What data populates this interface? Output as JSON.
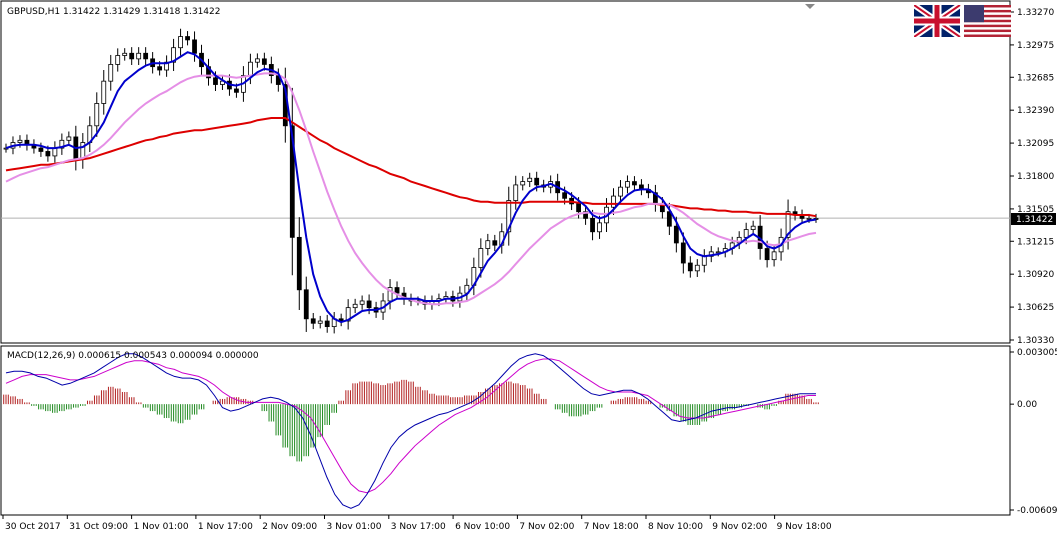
{
  "symbol_header": "GBPUSD,H1  1.31422 1.31429 1.31418 1.31422",
  "macd_header": "MACD(12,26,9) 0.000615 0.000543 0.000094 0.000000",
  "current_price_label": "1.31422",
  "flags": {
    "left": "uk-flag-icon",
    "right": "us-flag-icon"
  },
  "colors": {
    "bull_candle": "#ffffff",
    "bear_candle": "#000000",
    "fast_ma": "#0000cc",
    "mid_ma": "#e58fe6",
    "slow_ma": "#dd0000",
    "hist_pos": "#b22222",
    "hist_neg": "#228b22",
    "macd_line": "#0000aa",
    "signal_line": "#cc00cc"
  },
  "chart_data": [
    {
      "type": "line",
      "title": "GBPUSD,H1",
      "y_ticks": [
        "1.33270",
        "1.32975",
        "1.32685",
        "1.32390",
        "1.32095",
        "1.31800",
        "1.31505",
        "1.31215",
        "1.30920",
        "1.30625",
        "1.30330"
      ],
      "ylim": [
        1.3033,
        1.3327
      ],
      "x_ticks": [
        "30 Oct 2017",
        "31 Oct 09:00",
        "1 Nov 01:00",
        "1 Nov 17:00",
        "2 Nov 09:00",
        "3 Nov 01:00",
        "3 Nov 17:00",
        "6 Nov 10:00",
        "7 Nov 02:00",
        "7 Nov 18:00",
        "8 Nov 10:00",
        "9 Nov 02:00",
        "9 Nov 18:00"
      ],
      "last_price": 1.31422,
      "series": [
        {
          "kind": "close",
          "values": [
            1.3205,
            1.321,
            1.3212,
            1.3208,
            1.3205,
            1.3202,
            1.3198,
            1.3205,
            1.3212,
            1.3215,
            1.3195,
            1.321,
            1.3225,
            1.3245,
            1.3265,
            1.328,
            1.3288,
            1.329,
            1.3285,
            1.329,
            1.3285,
            1.3278,
            1.3275,
            1.3282,
            1.3295,
            1.3305,
            1.3302,
            1.329,
            1.3278,
            1.3268,
            1.3262,
            1.3265,
            1.3258,
            1.3255,
            1.327,
            1.3282,
            1.3285,
            1.328,
            1.327,
            1.3262,
            1.3225,
            1.3125,
            1.3078,
            1.3052,
            1.3048,
            1.305,
            1.3045,
            1.3052,
            1.305,
            1.3062,
            1.3065,
            1.3068,
            1.3062,
            1.3058,
            1.3068,
            1.308,
            1.3075,
            1.307,
            1.3068,
            1.3068,
            1.3065,
            1.3068,
            1.307,
            1.3072,
            1.3068,
            1.3075,
            1.3082,
            1.3098,
            1.3115,
            1.3122,
            1.3118,
            1.313,
            1.3158,
            1.3172,
            1.3175,
            1.3178,
            1.3172,
            1.317,
            1.3175,
            1.3165,
            1.316,
            1.3155,
            1.3148,
            1.3142,
            1.313,
            1.3138,
            1.3152,
            1.3162,
            1.317,
            1.3175,
            1.3172,
            1.3168,
            1.3165,
            1.3155,
            1.3148,
            1.3135,
            1.312,
            1.3102,
            1.3095,
            1.31,
            1.3108,
            1.3112,
            1.3112,
            1.3115,
            1.312,
            1.3125,
            1.3132,
            1.3135,
            1.3115,
            1.3105,
            1.3112,
            1.3125,
            1.3148,
            1.3145,
            1.3142,
            1.3142,
            1.3142
          ]
        },
        {
          "kind": "ma_fast",
          "values": [
            1.3205,
            1.3207,
            1.3208,
            1.3208,
            1.3208,
            1.3207,
            1.3205,
            1.3205,
            1.3206,
            1.3208,
            1.3205,
            1.3206,
            1.321,
            1.3218,
            1.3228,
            1.3242,
            1.3256,
            1.3265,
            1.327,
            1.3275,
            1.3279,
            1.3281,
            1.3281,
            1.3281,
            1.3283,
            1.3287,
            1.3291,
            1.3289,
            1.3284,
            1.3277,
            1.327,
            1.3266,
            1.3262,
            1.3261,
            1.3263,
            1.3268,
            1.3273,
            1.3276,
            1.3275,
            1.3272,
            1.3258,
            1.3215,
            1.3168,
            1.3125,
            1.3092,
            1.3072,
            1.3059,
            1.3052,
            1.3049,
            1.3051,
            1.3055,
            1.3059,
            1.306,
            1.306,
            1.3062,
            1.3067,
            1.307,
            1.307,
            1.307,
            1.307,
            1.3068,
            1.3068,
            1.3068,
            1.307,
            1.307,
            1.3071,
            1.3074,
            1.3082,
            1.3093,
            1.3104,
            1.3111,
            1.3119,
            1.3133,
            1.3147,
            1.3158,
            1.3166,
            1.317,
            1.3171,
            1.3173,
            1.317,
            1.3167,
            1.3163,
            1.3158,
            1.3153,
            1.3145,
            1.3142,
            1.3144,
            1.315,
            1.3157,
            1.3163,
            1.3167,
            1.3168,
            1.3168,
            1.3164,
            1.3159,
            1.315,
            1.3139,
            1.3126,
            1.3115,
            1.311,
            1.3108,
            1.3109,
            1.311,
            1.3112,
            1.3115,
            1.3119,
            1.3124,
            1.3128,
            1.3124,
            1.3117,
            1.3115,
            1.3118,
            1.3128,
            1.3134,
            1.3138,
            1.314,
            1.3141
          ]
        },
        {
          "kind": "ma_mid",
          "values": [
            1.3175,
            1.3178,
            1.3181,
            1.3183,
            1.3185,
            1.3187,
            1.3188,
            1.319,
            1.3192,
            1.3194,
            1.3195,
            1.3196,
            1.3199,
            1.3203,
            1.3208,
            1.3214,
            1.3221,
            1.3228,
            1.3234,
            1.324,
            1.3245,
            1.3249,
            1.3253,
            1.3256,
            1.326,
            1.3264,
            1.3267,
            1.3269,
            1.327,
            1.327,
            1.327,
            1.327,
            1.3269,
            1.3268,
            1.3269,
            1.327,
            1.3271,
            1.3272,
            1.3272,
            1.3271,
            1.3267,
            1.3255,
            1.3239,
            1.3221,
            1.3202,
            1.3184,
            1.3166,
            1.315,
            1.3135,
            1.3122,
            1.3111,
            1.3102,
            1.3094,
            1.3087,
            1.3081,
            1.3077,
            1.3074,
            1.3071,
            1.3069,
            1.3067,
            1.3066,
            1.3065,
            1.3065,
            1.3066,
            1.3066,
            1.3067,
            1.3068,
            1.3071,
            1.3075,
            1.3079,
            1.3083,
            1.3088,
            1.3094,
            1.3101,
            1.3108,
            1.3115,
            1.3121,
            1.3127,
            1.3133,
            1.3137,
            1.3141,
            1.3144,
            1.3146,
            1.3147,
            1.3147,
            1.3146,
            1.3146,
            1.3147,
            1.3148,
            1.315,
            1.3152,
            1.3153,
            1.3155,
            1.3155,
            1.3155,
            1.3154,
            1.3151,
            1.3147,
            1.3142,
            1.3137,
            1.3133,
            1.3129,
            1.3126,
            1.3124,
            1.3122,
            1.3121,
            1.3121,
            1.3122,
            1.3121,
            1.3119,
            1.3118,
            1.3119,
            1.3122,
            1.3124,
            1.3126,
            1.3128,
            1.3129
          ]
        },
        {
          "kind": "ma_slow",
          "values": [
            1.3185,
            1.3186,
            1.3187,
            1.3188,
            1.3189,
            1.319,
            1.319,
            1.3191,
            1.3192,
            1.3193,
            1.3194,
            1.3195,
            1.3196,
            1.3198,
            1.32,
            1.3202,
            1.3204,
            1.3206,
            1.3208,
            1.321,
            1.3212,
            1.3213,
            1.3215,
            1.3216,
            1.3218,
            1.3219,
            1.322,
            1.3221,
            1.3221,
            1.3222,
            1.3223,
            1.3224,
            1.3225,
            1.3226,
            1.3227,
            1.3228,
            1.323,
            1.3231,
            1.3232,
            1.3232,
            1.3232,
            1.3228,
            1.3224,
            1.322,
            1.3216,
            1.3212,
            1.3209,
            1.3205,
            1.3202,
            1.3199,
            1.3196,
            1.3193,
            1.319,
            1.3188,
            1.3185,
            1.3182,
            1.318,
            1.3178,
            1.3175,
            1.3173,
            1.3171,
            1.3169,
            1.3167,
            1.3165,
            1.3163,
            1.3161,
            1.316,
            1.3158,
            1.3157,
            1.3157,
            1.3156,
            1.3156,
            1.3156,
            1.3156,
            1.3156,
            1.3157,
            1.3157,
            1.3157,
            1.3157,
            1.3157,
            1.3157,
            1.3157,
            1.3156,
            1.3156,
            1.3155,
            1.3155,
            1.3155,
            1.3155,
            1.3155,
            1.3155,
            1.3155,
            1.3155,
            1.3155,
            1.3155,
            1.3154,
            1.3154,
            1.3153,
            1.3152,
            1.3151,
            1.3151,
            1.315,
            1.315,
            1.3149,
            1.3149,
            1.3148,
            1.3148,
            1.3148,
            1.3147,
            1.3147,
            1.3146,
            1.3146,
            1.3146,
            1.3146,
            1.3145,
            1.3145,
            1.3145,
            1.3144
          ]
        }
      ]
    },
    {
      "type": "bar",
      "title": "MACD(12,26,9)",
      "y_ticks": [
        "0.003005",
        "0.00",
        "-0.006099"
      ],
      "ylim": [
        -0.006099,
        0.003005
      ],
      "series": [
        {
          "kind": "histogram",
          "values": [
            0.00055,
            0.00045,
            0.0003,
            0.0001,
            -0.0001,
            -0.0003,
            -0.0004,
            -0.0005,
            -0.0004,
            -0.0003,
            -0.0002,
            -0.0001,
            0.0002,
            0.0005,
            0.0008,
            0.001,
            0.0009,
            0.0007,
            0.0004,
            0.0001,
            -0.0002,
            -0.0004,
            -0.0006,
            -0.0008,
            -0.001,
            -0.0011,
            -0.0009,
            -0.0006,
            -0.0003,
            0.0,
            0.0002,
            0.0003,
            0.0004,
            0.0004,
            0.0003,
            0.0002,
            0.0,
            -0.0004,
            -0.001,
            -0.0018,
            -0.0025,
            -0.003,
            -0.0033,
            -0.003,
            -0.0025,
            -0.0019,
            -0.0012,
            -0.0005,
            0.0002,
            0.0008,
            0.0012,
            0.0013,
            0.0013,
            0.0012,
            0.0011,
            0.0012,
            0.0013,
            0.0014,
            0.0013,
            0.001,
            0.0008,
            0.0006,
            0.0005,
            0.0005,
            0.0004,
            0.0004,
            0.0005,
            0.0005,
            0.0007,
            0.0009,
            0.0011,
            0.0012,
            0.0013,
            0.0012,
            0.0011,
            0.0009,
            0.0006,
            0.0003,
            0.0,
            -0.0003,
            -0.0005,
            -0.0007,
            -0.0007,
            -0.0006,
            -0.0004,
            -0.0002,
            0.0,
            0.0002,
            0.0003,
            0.0004,
            0.0004,
            0.0003,
            0.0002,
            0.0,
            -0.0002,
            -0.0004,
            -0.0007,
            -0.001,
            -0.0012,
            -0.0012,
            -0.001,
            -0.0008,
            -0.0006,
            -0.0004,
            -0.0003,
            -0.0002,
            -0.0001,
            0.0,
            -0.0002,
            -0.0003,
            -0.0001,
            0.0002,
            0.0006,
            0.0006,
            0.0005,
            0.0003,
            0.0001
          ]
        },
        {
          "kind": "macd",
          "values": [
            0.0018,
            0.0019,
            0.0019,
            0.0018,
            0.0016,
            0.0015,
            0.0013,
            0.0011,
            0.0012,
            0.0014,
            0.0016,
            0.0018,
            0.0021,
            0.0024,
            0.0027,
            0.0029,
            0.0029,
            0.0027,
            0.0024,
            0.0021,
            0.0018,
            0.0016,
            0.0015,
            0.0015,
            0.0014,
            0.0011,
            0.0005,
            -0.0002,
            -0.0004,
            -0.0003,
            -0.0001,
            0.0001,
            0.0003,
            0.0004,
            0.0003,
            0.0001,
            -0.0002,
            -0.0008,
            -0.0018,
            -0.003,
            -0.0042,
            -0.0052,
            -0.0058,
            -0.006,
            -0.0058,
            -0.0052,
            -0.0044,
            -0.0034,
            -0.0025,
            -0.0019,
            -0.0015,
            -0.0012,
            -0.001,
            -0.0008,
            -0.0006,
            -0.0005,
            -0.0003,
            -0.0001,
            0.0001,
            0.0004,
            0.0008,
            0.0012,
            0.0017,
            0.0022,
            0.0026,
            0.0028,
            0.0029,
            0.0028,
            0.0025,
            0.0021,
            0.0017,
            0.0013,
            0.0009,
            0.0006,
            0.0005,
            0.0006,
            0.0007,
            0.0008,
            0.0008,
            0.0006,
            0.0003,
            -0.0001,
            -0.0005,
            -0.0009,
            -0.001,
            -0.0009,
            -0.0008,
            -0.0006,
            -0.0004,
            -0.0003,
            -0.0002,
            -0.0002,
            -0.0001,
            0.0,
            0.0001,
            0.0002,
            0.0003,
            0.0004,
            0.0005,
            0.0006,
            0.0006,
            0.0006
          ]
        },
        {
          "kind": "signal",
          "values": [
            0.0012,
            0.0014,
            0.0016,
            0.0017,
            0.0017,
            0.0017,
            0.0016,
            0.0015,
            0.0014,
            0.0014,
            0.0015,
            0.0016,
            0.0018,
            0.002,
            0.0022,
            0.0024,
            0.0025,
            0.0025,
            0.0024,
            0.0023,
            0.0021,
            0.002,
            0.0018,
            0.0017,
            0.0016,
            0.0014,
            0.0011,
            0.0007,
            0.0004,
            0.0002,
            0.0001,
            0.0001,
            0.0001,
            0.0001,
            0.0001,
            0.0,
            -0.0001,
            -0.0004,
            -0.0008,
            -0.0015,
            -0.0023,
            -0.0031,
            -0.0039,
            -0.0046,
            -0.005,
            -0.0051,
            -0.0049,
            -0.0045,
            -0.004,
            -0.0034,
            -0.0029,
            -0.0024,
            -0.002,
            -0.0016,
            -0.0012,
            -0.0009,
            -0.0006,
            -0.0004,
            -0.0002,
            0.0001,
            0.0004,
            0.0008,
            0.0012,
            0.0016,
            0.002,
            0.0023,
            0.0025,
            0.0026,
            0.0026,
            0.0025,
            0.0022,
            0.0019,
            0.0016,
            0.0013,
            0.001,
            0.0008,
            0.0007,
            0.0007,
            0.0007,
            0.0006,
            0.0005,
            0.0002,
            -0.0001,
            -0.0004,
            -0.0007,
            -0.0008,
            -0.0008,
            -0.0008,
            -0.0007,
            -0.0006,
            -0.0005,
            -0.0004,
            -0.0003,
            -0.0002,
            -0.0001,
            0.0,
            0.0001,
            0.0002,
            0.0003,
            0.0004,
            0.0005,
            0.0005
          ]
        }
      ]
    }
  ]
}
